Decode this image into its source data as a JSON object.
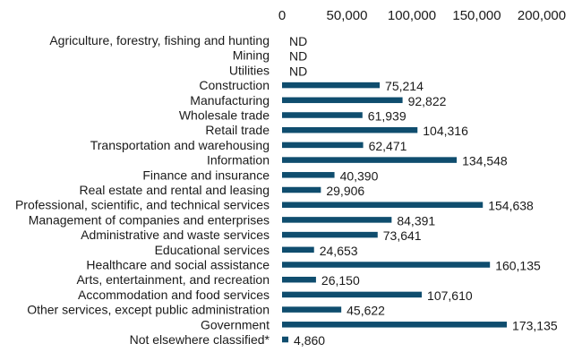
{
  "chart_data": {
    "type": "bar",
    "orientation": "horizontal",
    "title": "",
    "xlabel": "",
    "ylabel": "",
    "xlim": [
      0,
      200000
    ],
    "xticks": [
      0,
      50000,
      100000,
      150000,
      200000
    ],
    "x_tick_labels": [
      "0",
      "50,000",
      "100,000",
      "150,000",
      "200,000"
    ],
    "axis_position": "top",
    "grid": false,
    "legend": "none",
    "bar_color": "#0f4d6e",
    "categories": [
      "Agriculture, forestry, fishing and hunting",
      "Mining",
      "Utilities",
      "Construction",
      "Manufacturing",
      "Wholesale trade",
      "Retail trade",
      "Transportation and warehousing",
      "Information",
      "Finance and insurance",
      "Real estate and rental and leasing",
      "Professional, scientific, and technical services",
      "Management of companies and enterprises",
      "Administrative and waste services",
      "Educational services",
      "Healthcare and social assistance",
      "Arts, entertainment, and recreation",
      "Accommodation and food services",
      "Other services, except public administration",
      "Government",
      "Not elsewhere classified*"
    ],
    "values": [
      null,
      null,
      null,
      75214,
      92822,
      61939,
      104316,
      62471,
      134548,
      40390,
      29906,
      154638,
      84391,
      73641,
      24653,
      160135,
      26150,
      107610,
      45622,
      173135,
      4860
    ],
    "data_labels": [
      "ND",
      "ND",
      "ND",
      "75,214",
      "92,822",
      "61,939",
      "104,316",
      "62,471",
      "134,548",
      "40,390",
      "29,906",
      "154,638",
      "84,391",
      "73,641",
      "24,653",
      "160,135",
      "26,150",
      "107,610",
      "45,622",
      "173,135",
      "4,860"
    ]
  }
}
